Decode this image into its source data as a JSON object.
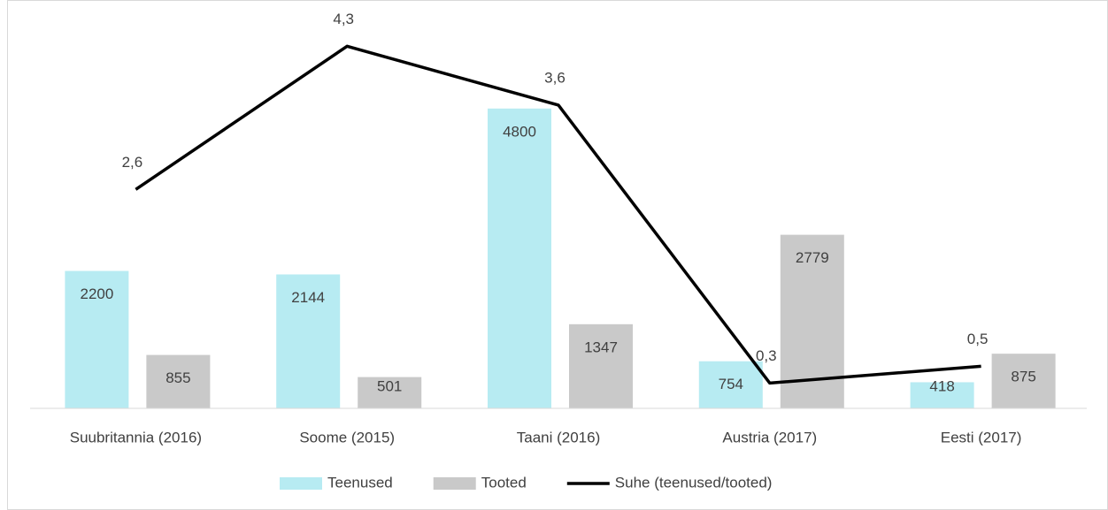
{
  "chart_data": {
    "type": "bar-line",
    "categories": [
      "Suubritannia (2016)",
      "Soome (2015)",
      "Taani (2016)",
      "Austria (2017)",
      "Eesti (2017)"
    ],
    "series": [
      {
        "name": "Teenused",
        "color": "#b7ebf2",
        "values": [
          2200,
          2144,
          4800,
          754,
          418
        ]
      },
      {
        "name": "Tooted",
        "color": "#c9c9c9",
        "values": [
          855,
          501,
          1347,
          2779,
          875
        ]
      },
      {
        "name": "Suhe (teenused/tooted)",
        "color": "#000000",
        "axis": "y2",
        "values": [
          2.6,
          4.3,
          3.6,
          0.3,
          0.5
        ],
        "value_labels": [
          "2,6",
          "4,3",
          "3,6",
          "0,3",
          "0,5"
        ]
      }
    ],
    "ylim": [
      0,
      6000
    ],
    "y2lim": [
      0,
      4.45
    ]
  }
}
